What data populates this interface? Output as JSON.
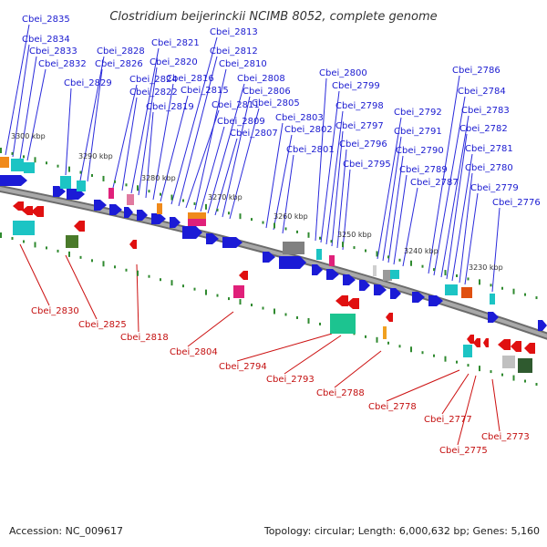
{
  "title": "Clostridium beijerinckii NCIMB 8052, complete genome",
  "footer": {
    "accession": "Accession: NC_009617",
    "summary": "Topology: circular; Length: 6,000,632 bp; Genes: 5,160"
  },
  "colors": {
    "forward": "#1b1bd6",
    "reverse": "#e01010",
    "leader_top": "#2a2adb",
    "leader_bottom": "#cc1010",
    "backbone": "#808080",
    "gc_dot": "#2f8a2f"
  },
  "ticks": [
    "3300 kbp",
    "3290 kbp",
    "3280 kbp",
    "3270 kbp",
    "3260 kbp",
    "3250 kbp",
    "3240 kbp",
    "3230 kbp"
  ],
  "top_labels": [
    "Cbei_2835",
    "Cbei_2834",
    "Cbei_2833",
    "Cbei_2832",
    "Cbei_2829",
    "Cbei_2828",
    "Cbei_2826",
    "Cbei_2824",
    "Cbei_2822",
    "Cbei_2821",
    "Cbei_2820",
    "Cbei_2819",
    "Cbei_2816",
    "Cbei_2815",
    "Cbei_2813",
    "Cbei_2812",
    "Cbei_2811",
    "Cbei_2810",
    "Cbei_2809",
    "Cbei_2808",
    "Cbei_2807",
    "Cbei_2806",
    "Cbei_2805",
    "Cbei_2803",
    "Cbei_2802",
    "Cbei_2801",
    "Cbei_2800",
    "Cbei_2799",
    "Cbei_2798",
    "Cbei_2797",
    "Cbei_2796",
    "Cbei_2795",
    "Cbei_2792",
    "Cbei_2791",
    "Cbei_2790",
    "Cbei_2789",
    "Cbei_2787",
    "Cbei_2786",
    "Cbei_2784",
    "Cbei_2783",
    "Cbei_2782",
    "Cbei_2781",
    "Cbei_2780",
    "Cbei_2779",
    "Cbei_2776"
  ],
  "bottom_labels": [
    "Cbei_2830",
    "Cbei_2825",
    "Cbei_2818",
    "Cbei_2804",
    "Cbei_2794",
    "Cbei_2793",
    "Cbei_2788",
    "Cbei_2778",
    "Cbei_2777",
    "Cbei_2773",
    "Cbei_2775"
  ]
}
